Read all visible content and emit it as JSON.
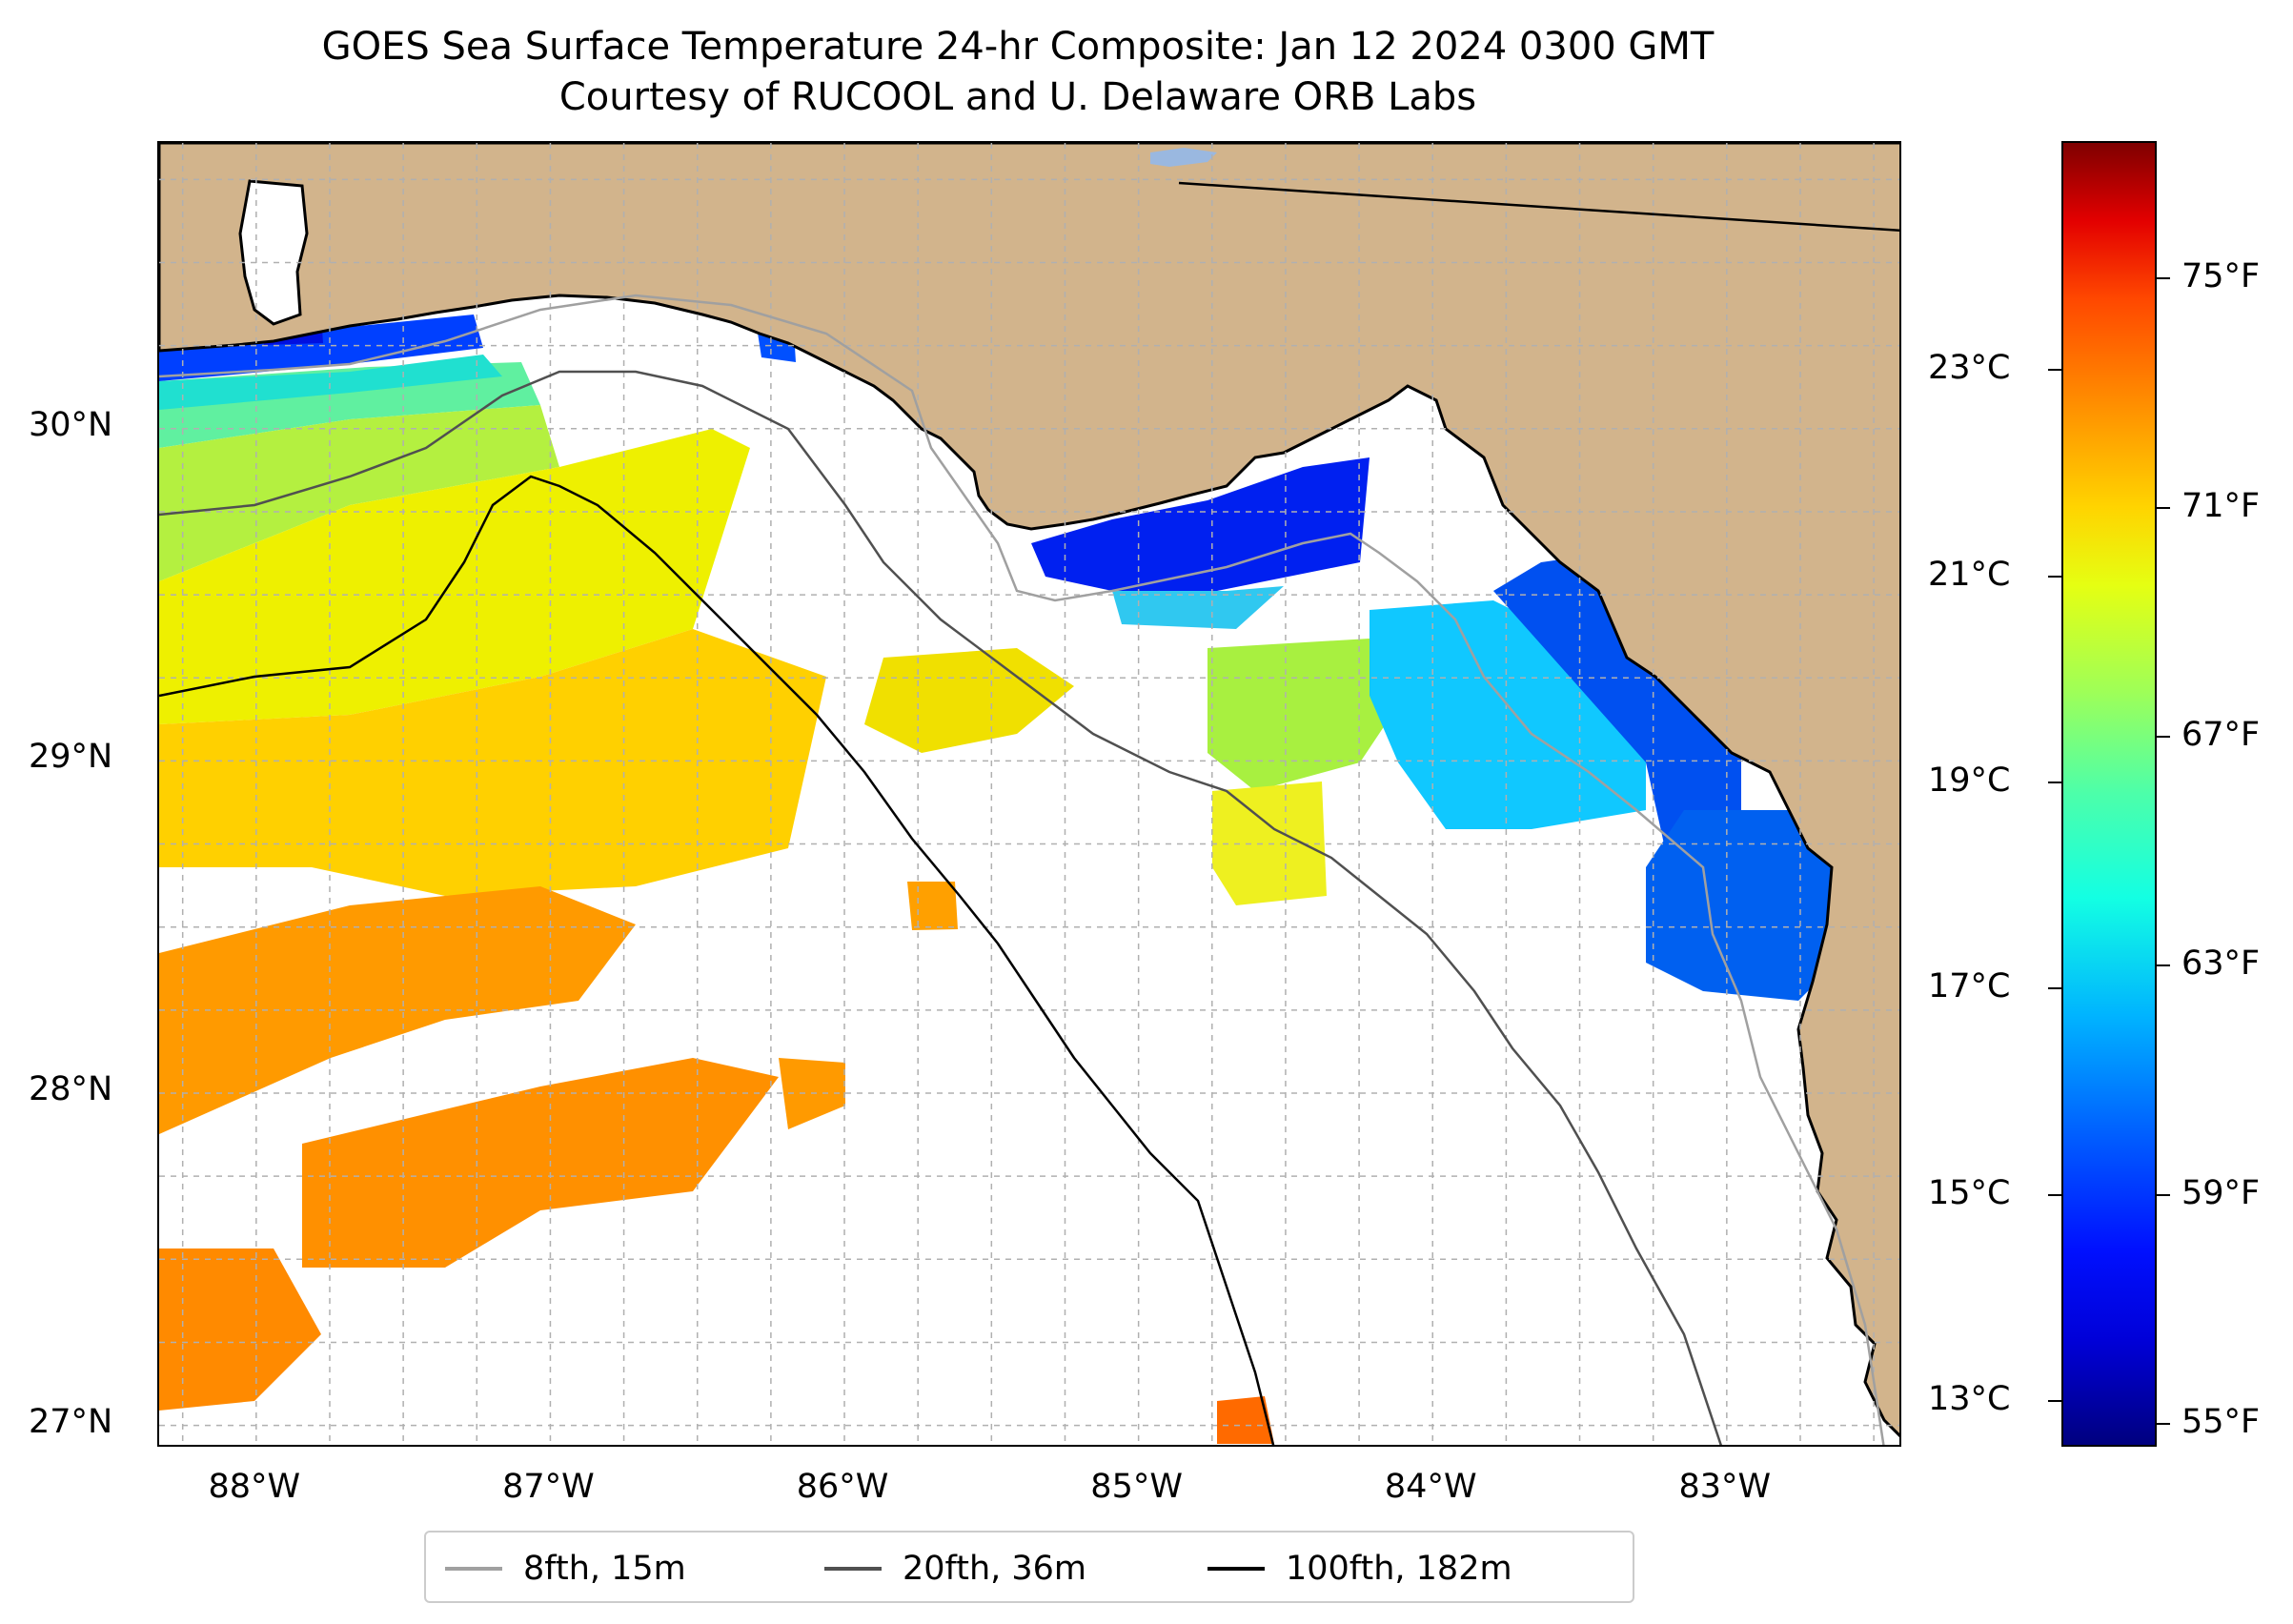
{
  "title": {
    "line1": "GOES Sea Surface Temperature 24-hr Composite: Jan 12 2024 0300 GMT",
    "line2": "Courtesy of RUCOOL and U. Delaware ORB Labs"
  },
  "map": {
    "extent": {
      "lon_min": -88.33,
      "lon_max": -82.4,
      "lat_min": 26.93,
      "lat_max": 30.86
    },
    "land_color": "#d2b48c",
    "ocean_color": "#ffffff",
    "lat_ticks": [
      {
        "value": 30,
        "label": "30°N"
      },
      {
        "value": 29,
        "label": "29°N"
      },
      {
        "value": 28,
        "label": "28°N"
      },
      {
        "value": 27,
        "label": "27°N"
      }
    ],
    "lon_ticks": [
      {
        "value": -88,
        "label": "88°W"
      },
      {
        "value": -87,
        "label": "87°W"
      },
      {
        "value": -86,
        "label": "86°W"
      },
      {
        "value": -85,
        "label": "85°W"
      },
      {
        "value": -84,
        "label": "84°W"
      },
      {
        "value": -83,
        "label": "83°W"
      }
    ],
    "sst_regions": [
      {
        "name": "mobile-bay-cold-water",
        "color": "#0010e0"
      },
      {
        "name": "western-shelf-cold-band",
        "color": "#0040ff"
      },
      {
        "name": "western-shelf-green",
        "color": "#60f0a0"
      },
      {
        "name": "central-yellow",
        "color": "#eef000"
      },
      {
        "name": "offshore-warm-yellow",
        "color": "#ffcc00"
      },
      {
        "name": "offshore-orange",
        "color": "#ff9a00"
      },
      {
        "name": "apalachee-cold-band",
        "color": "#0020f0"
      },
      {
        "name": "big-bend-cyan",
        "color": "#10a8ff"
      },
      {
        "name": "big-bend-blue",
        "color": "#0050f0"
      },
      {
        "name": "big-bend-green",
        "color": "#a8f040"
      }
    ]
  },
  "legend": {
    "items": [
      {
        "label": "8fth, 15m",
        "color": "#a0a0a0"
      },
      {
        "label": "20fth, 36m",
        "color": "#505050"
      },
      {
        "label": "100fth, 182m",
        "color": "#000000"
      }
    ]
  },
  "colorbar": {
    "colormap": "jet",
    "range_f": [
      54.6,
      77.4
    ],
    "celsius_ticks": [
      {
        "value": 23,
        "label": "23°C"
      },
      {
        "value": 21,
        "label": "21°C"
      },
      {
        "value": 19,
        "label": "19°C"
      },
      {
        "value": 17,
        "label": "17°C"
      },
      {
        "value": 15,
        "label": "15°C"
      },
      {
        "value": 13,
        "label": "13°C"
      }
    ],
    "fahrenheit_ticks": [
      {
        "value": 75,
        "label": "75°F"
      },
      {
        "value": 71,
        "label": "71°F"
      },
      {
        "value": 67,
        "label": "67°F"
      },
      {
        "value": 63,
        "label": "63°F"
      },
      {
        "value": 59,
        "label": "59°F"
      },
      {
        "value": 55,
        "label": "55°F"
      }
    ]
  }
}
